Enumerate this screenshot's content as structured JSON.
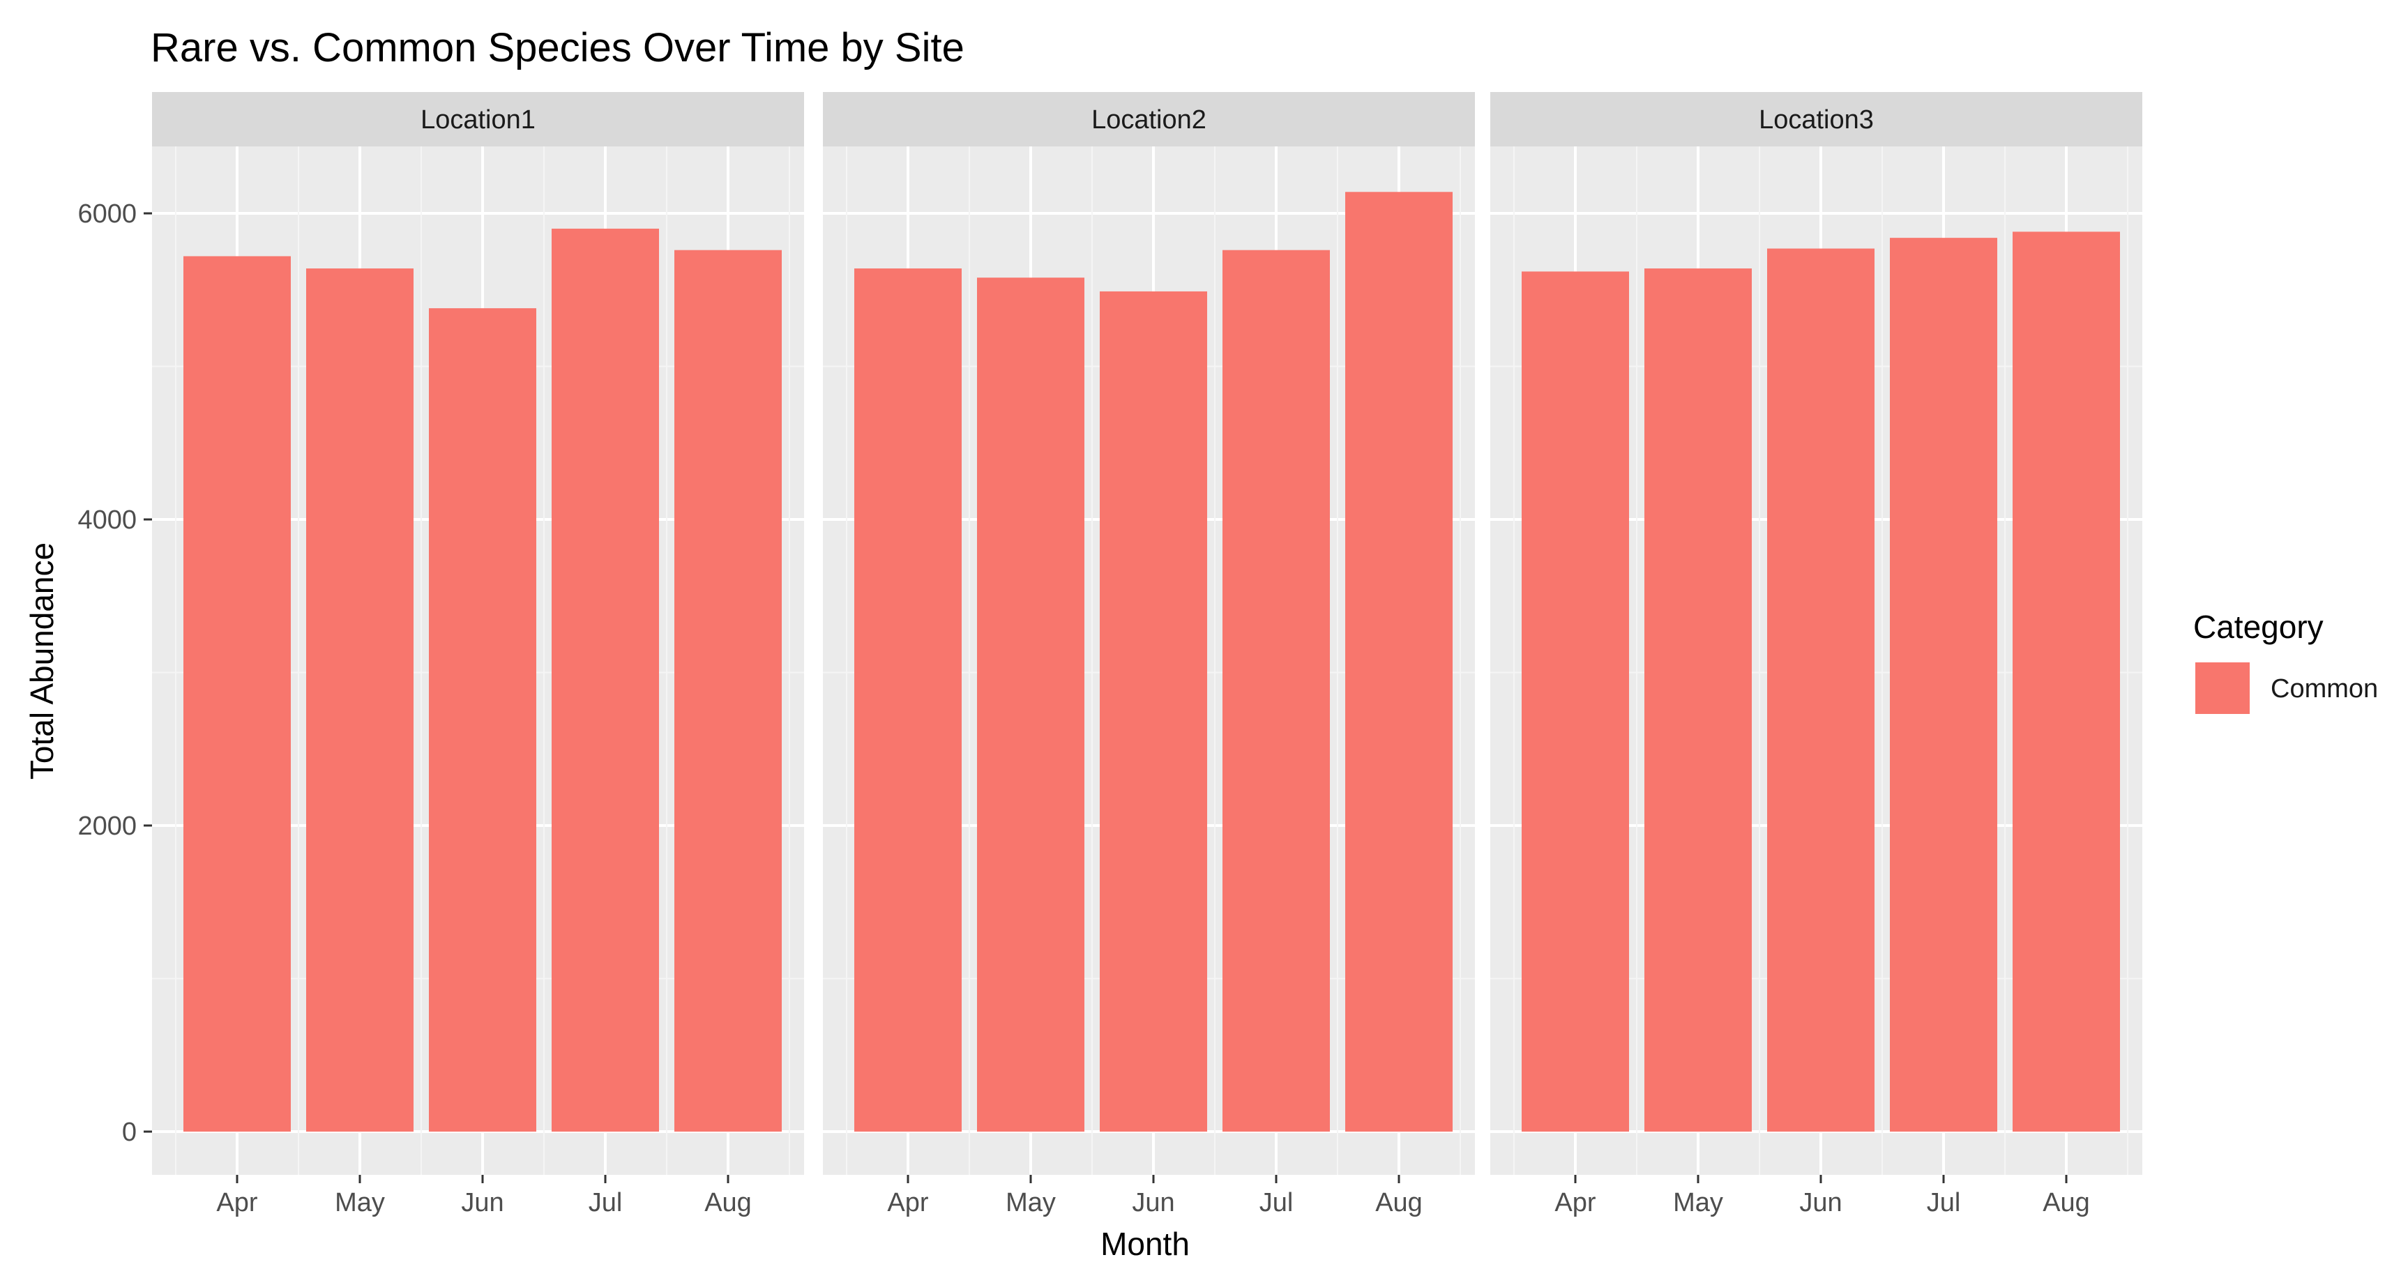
{
  "chart_data": {
    "type": "bar",
    "title": "Rare vs. Common Species Over Time by Site",
    "xlabel": "Month",
    "ylabel": "Total Abundance",
    "categories": [
      "Apr",
      "May",
      "Jun",
      "Jul",
      "Aug"
    ],
    "ylim": [
      0,
      6550
    ],
    "yticks": [
      0,
      2000,
      4000,
      6000
    ],
    "grid": true,
    "legend": {
      "title": "Category",
      "position": "right",
      "entries": [
        "Common"
      ]
    },
    "colors": {
      "Common": "#F8766D"
    },
    "facets": [
      {
        "label": "Location1",
        "series": [
          {
            "name": "Common",
            "values": [
              5720,
              5640,
              5380,
              5900,
              5760
            ]
          }
        ]
      },
      {
        "label": "Location2",
        "series": [
          {
            "name": "Common",
            "values": [
              5640,
              5580,
              5490,
              5760,
              6140
            ]
          }
        ]
      },
      {
        "label": "Location3",
        "series": [
          {
            "name": "Common",
            "values": [
              5620,
              5640,
              5770,
              5840,
              5880
            ]
          }
        ]
      }
    ]
  }
}
